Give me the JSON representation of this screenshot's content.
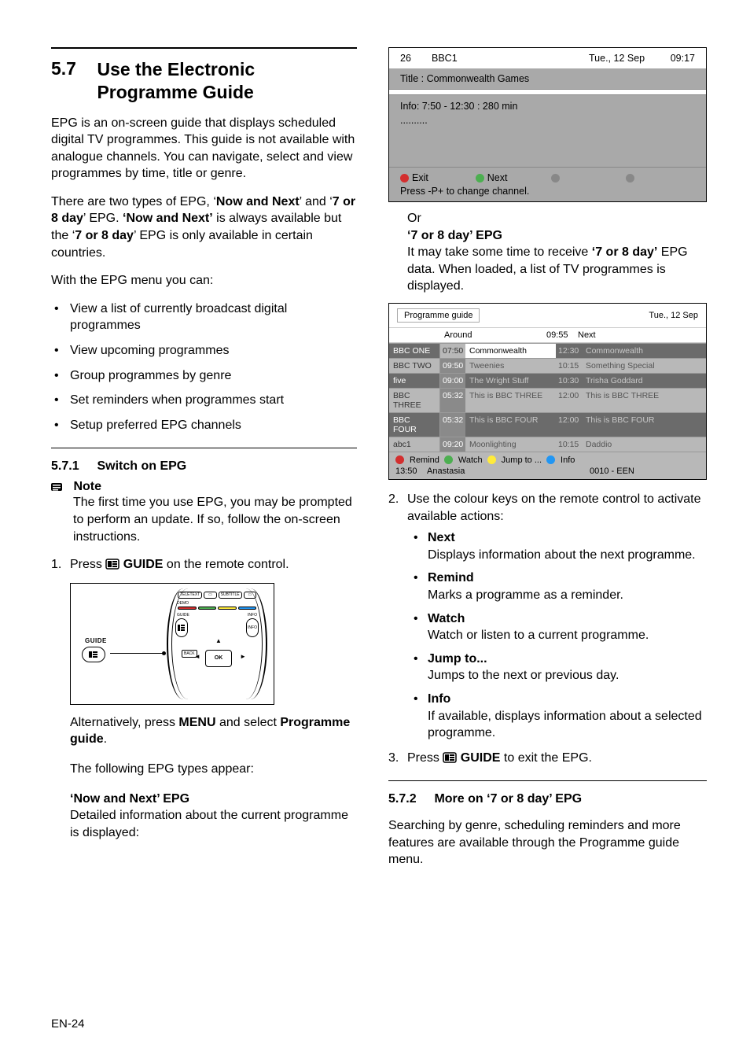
{
  "colors": {
    "text": "#000000",
    "bg": "#ffffff",
    "grey_dark": "#6b6b6b",
    "grey_mid": "#a9a9a9",
    "grey_light": "#b8b8b8",
    "red": "#d32f2f",
    "green": "#4caf50",
    "yellow": "#ffeb3b",
    "blue": "#2196f3"
  },
  "typography": {
    "heading_fontsize_pt": 17,
    "subheading_fontsize_pt": 12,
    "body_fontsize_pt": 12,
    "table_fontsize_pt": 8
  },
  "left": {
    "section_num": "5.7",
    "section_title": "Use the Electronic Programme Guide",
    "p1": "EPG is an on-screen guide that displays scheduled digital TV programmes. This guide is not available with analogue channels. You can navigate, select and view programmes by time, title or genre.",
    "p2_a": "There are two types of EPG, ‘",
    "p2_b": "Now and Next",
    "p2_c": "’ and ‘",
    "p2_d": "7 or 8 day",
    "p2_e": "’ EPG. ",
    "p2_f": "‘Now and Next’",
    "p2_g": " is always available but the ‘",
    "p2_h": "7 or 8 day",
    "p2_i": "’ EPG is only available in certain countries.",
    "p3": "With the EPG menu you can:",
    "bullets": [
      "View a list of currently broadcast digital programmes",
      "View upcoming programmes",
      "Group programmes by genre",
      "Set reminders when programmes start",
      "Setup preferred EPG channels"
    ],
    "sub1_num": "5.7.1",
    "sub1_title": "Switch on EPG",
    "note_label": "Note",
    "note_text": "The first time you use EPG, you may be prompted to perform an update. If so, follow the on-screen instructions.",
    "step1_num": "1.",
    "step1_a": "Press ",
    "step1_b": "GUIDE",
    "step1_c": " on the remote control.",
    "remote": {
      "side_label": "GUIDE",
      "row1": [
        "TELETEXT",
        "",
        "SUBTITLE",
        ""
      ],
      "demo": "DEMO",
      "guide_small": "GUIDE",
      "info_small": "INFO",
      "back": "BACK",
      "ok": "OK"
    },
    "alt_a": "Alternatively, press ",
    "alt_b": "MENU",
    "alt_c": " and select ",
    "alt_d": "Programme guide",
    "alt_e": ".",
    "types_intro": "The following EPG types appear:",
    "nn_head": "‘Now and Next’ EPG",
    "nn_text": "Detailed information about the current programme is displayed:"
  },
  "right": {
    "nn_box": {
      "ch_num": "26",
      "ch_name": "BBC1",
      "date": "Tue., 12 Sep",
      "time": "09:17",
      "title_label": "Title : Commonwealth Games",
      "info_line": "Info: 7:50 - 12:30 : 280 min",
      "dots": "..........",
      "exit": "Exit",
      "next": "Next",
      "press": "Press -P+ to change channel."
    },
    "or": "Or",
    "d7_head": "‘7 or 8 day’ EPG",
    "d7_a": "It may take some time to receive ",
    "d7_b": "‘7 or 8 day’",
    "d7_c": " EPG data. When loaded, a list of TV programmes is displayed.",
    "pg_box": {
      "tab": "Programme guide",
      "date": "Tue., 12 Sep",
      "sub_around": "Around",
      "sub_time": "09:55",
      "sub_next": "Next",
      "rows": [
        {
          "chan": "BBC ONE",
          "t1": "07:50",
          "p1": "Commonwealth",
          "t2": "12:30",
          "p2": "Commonwealth",
          "style": "dark",
          "first": true
        },
        {
          "chan": "BBC TWO",
          "t1": "09:50",
          "p1": "Tweenies",
          "t2": "10:15",
          "p2": "Something Special",
          "style": "lite"
        },
        {
          "chan": "five",
          "t1": "09:00",
          "p1": "The Wright Stuff",
          "t2": "10:30",
          "p2": "Trisha Goddard",
          "style": "dark"
        },
        {
          "chan": "BBC THREE",
          "t1": "05:32",
          "p1": "This is BBC THREE",
          "t2": "12:00",
          "p2": "This is BBC THREE",
          "style": "lite"
        },
        {
          "chan": "BBC FOUR",
          "t1": "05:32",
          "p1": "This is BBC FOUR",
          "t2": "12:00",
          "p2": "This is BBC FOUR",
          "style": "dark"
        },
        {
          "chan": "abc1",
          "t1": "09:20",
          "p1": "Moonlighting",
          "t2": "10:15",
          "p2": "Daddio",
          "style": "lite"
        }
      ],
      "remind": "Remind",
      "watch": "Watch",
      "jump": "Jump to ...",
      "info": "Info",
      "foot_time": "13:50",
      "foot_name": "Anastasia",
      "foot_code": "0010 - EEN"
    },
    "step2_num": "2.",
    "step2_text": "Use the colour keys on the remote control to activate available actions:",
    "actions": [
      {
        "t": "Next",
        "d": "Displays information about the next programme."
      },
      {
        "t": "Remind",
        "d": "Marks a programme as a reminder."
      },
      {
        "t": "Watch",
        "d": "Watch or listen to a current programme."
      },
      {
        "t": "Jump to...",
        "d": "Jumps to the next or previous day."
      },
      {
        "t": "Info",
        "d": "If available, displays information about a selected programme."
      }
    ],
    "step3_num": "3.",
    "step3_a": "Press ",
    "step3_b": "GUIDE",
    "step3_c": " to exit the EPG.",
    "sub2_num": "5.7.2",
    "sub2_title": "More on ‘7 or 8 day’ EPG",
    "sub2_text": "Searching by genre, scheduling reminders and more features are available through the Programme guide menu."
  },
  "footer": "EN-24"
}
